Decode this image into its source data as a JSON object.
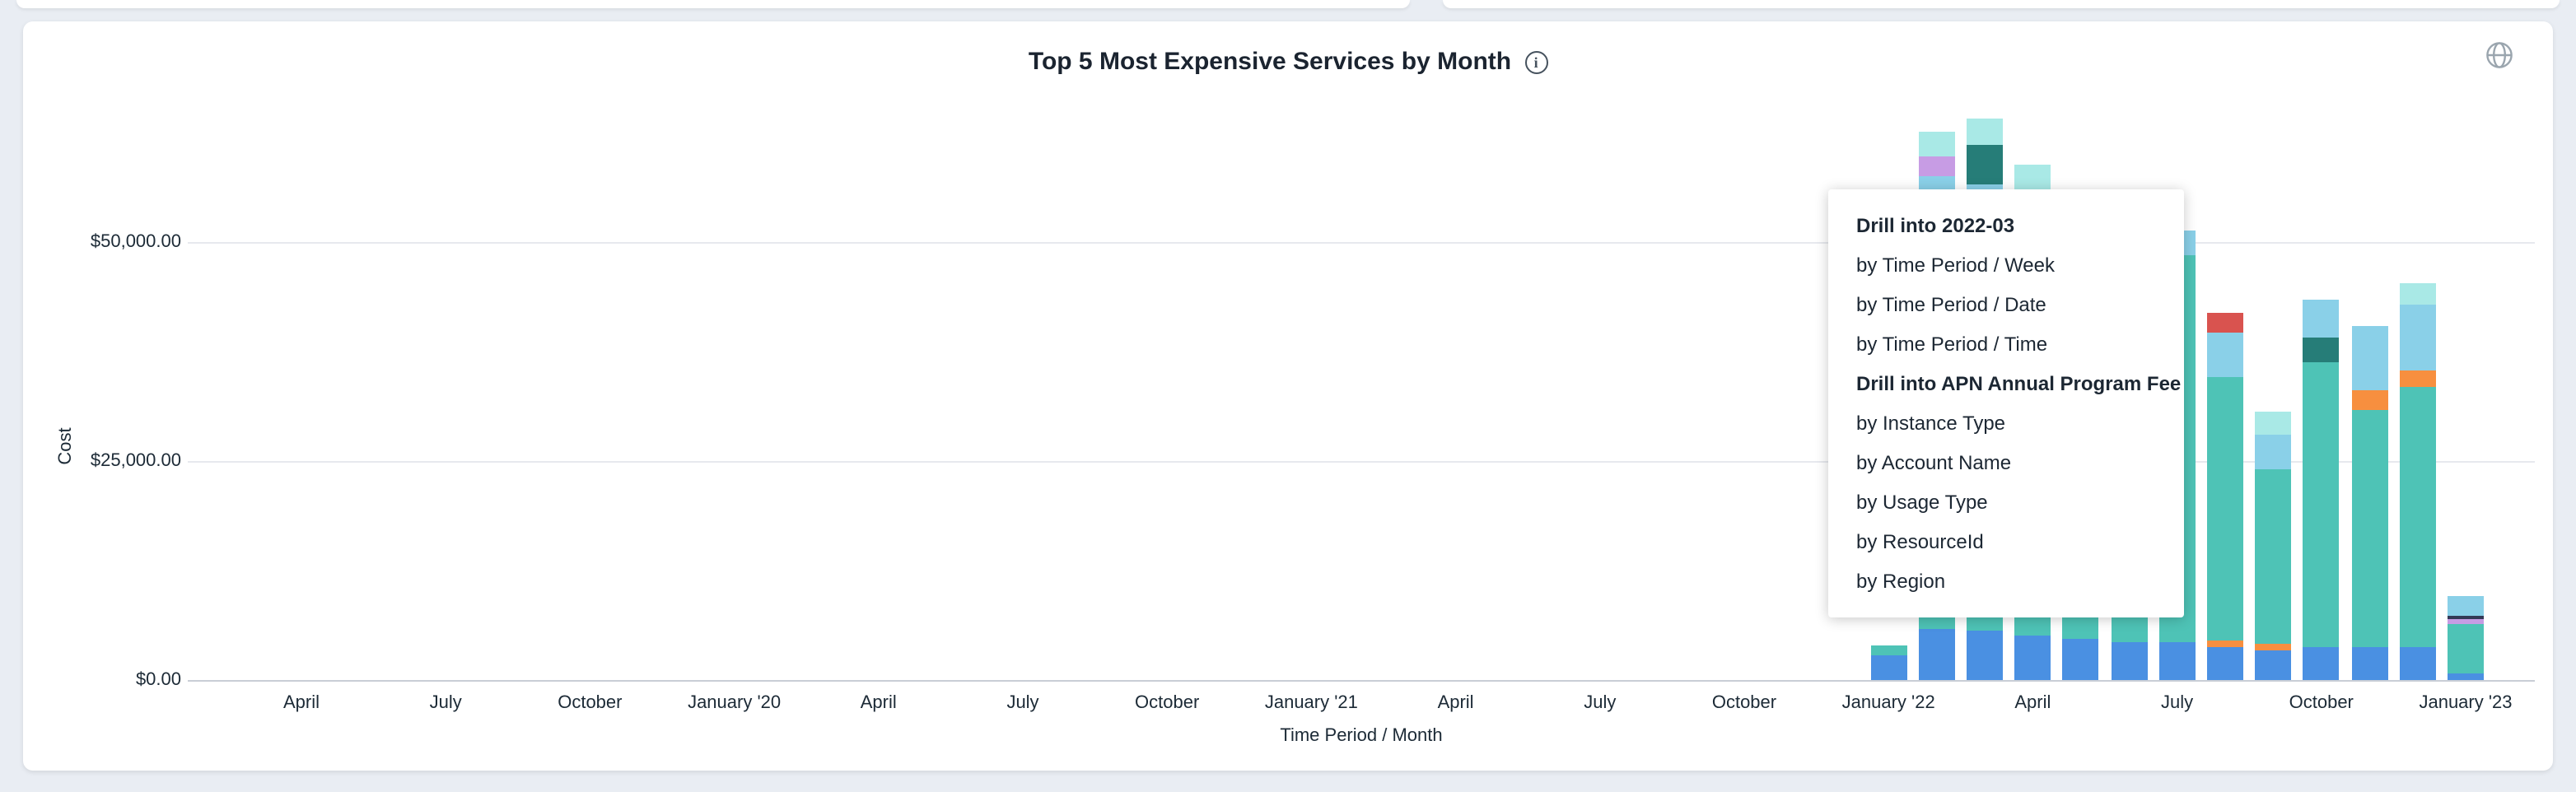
{
  "card": {
    "title": "Top 5 Most Expensive Services by Month",
    "info_icon_glyph": "i"
  },
  "menu": {
    "sections": [
      {
        "header": "Drill into 2022-03",
        "items": [
          "by Time Period / Week",
          "by Time Period / Date",
          "by Time Period / Time"
        ]
      },
      {
        "header": "Drill into APN Annual Program Fee",
        "items": [
          "by Instance Type",
          "by Account Name",
          "by Usage Type",
          "by ResourceId",
          "by Region"
        ]
      }
    ]
  },
  "chart_data": {
    "type": "bar",
    "subtype": "stacked-bar",
    "title": "Top 5 Most Expensive Services by Month",
    "xlabel": "Time Period / Month",
    "ylabel": "Cost",
    "ylim": [
      0,
      66500
    ],
    "grid": "horizontal",
    "legend": "none",
    "y_ticks": [
      {
        "value": 0,
        "label": "$0.00"
      },
      {
        "value": 25000,
        "label": "$25,000.00"
      },
      {
        "value": 50000,
        "label": "$50,000.00"
      }
    ],
    "x_ticks": [
      {
        "month_index": 0,
        "label": "April"
      },
      {
        "month_index": 3,
        "label": "July"
      },
      {
        "month_index": 6,
        "label": "October"
      },
      {
        "month_index": 9,
        "label": "January '20"
      },
      {
        "month_index": 12,
        "label": "April"
      },
      {
        "month_index": 15,
        "label": "July"
      },
      {
        "month_index": 18,
        "label": "October"
      },
      {
        "month_index": 21,
        "label": "January '21"
      },
      {
        "month_index": 24,
        "label": "April"
      },
      {
        "month_index": 27,
        "label": "July"
      },
      {
        "month_index": 30,
        "label": "October"
      },
      {
        "month_index": 33,
        "label": "January '22"
      },
      {
        "month_index": 36,
        "label": "April"
      },
      {
        "month_index": 39,
        "label": "July"
      },
      {
        "month_index": 42,
        "label": "October"
      },
      {
        "month_index": 45,
        "label": "January '23"
      }
    ],
    "series_colors": {
      "blue": "#4a90e2",
      "teal": "#4ec3b6",
      "light-blue": "#8ad0e8",
      "cyan": "#a9e9e6",
      "orange": "#f78f3f",
      "dark-teal": "#267d78",
      "purple": "#c79ce4",
      "red": "#d9534f",
      "navy": "#333a56"
    },
    "bars": [
      {
        "month": "2022-01",
        "month_index": 33,
        "segments": [
          {
            "color": "blue",
            "value": 2800
          },
          {
            "color": "teal",
            "value": 1100
          }
        ]
      },
      {
        "month": "2022-02",
        "month_index": 34,
        "segments": [
          {
            "color": "blue",
            "value": 5800
          },
          {
            "color": "teal",
            "value": 38000
          },
          {
            "color": "light-blue",
            "value": 13700
          },
          {
            "color": "purple",
            "value": 2300
          },
          {
            "color": "cyan",
            "value": 2800
          }
        ]
      },
      {
        "month": "2022-03",
        "month_index": 35,
        "segments": [
          {
            "color": "blue",
            "value": 5600
          },
          {
            "color": "teal",
            "value": 44000
          },
          {
            "color": "light-blue",
            "value": 7000
          },
          {
            "color": "dark-teal",
            "value": 4500
          },
          {
            "color": "cyan",
            "value": 3000
          }
        ]
      },
      {
        "month": "2022-04",
        "month_index": 36,
        "segments": [
          {
            "color": "blue",
            "value": 5000
          },
          {
            "color": "teal",
            "value": 42000
          },
          {
            "color": "light-blue",
            "value": 9000
          },
          {
            "color": "cyan",
            "value": 2800
          }
        ]
      },
      {
        "month": "2022-05",
        "month_index": 37,
        "segments": [
          {
            "color": "blue",
            "value": 4700
          },
          {
            "color": "teal",
            "value": 26000
          },
          {
            "color": "light-blue",
            "value": 4300
          }
        ]
      },
      {
        "month": "2022-06",
        "month_index": 38,
        "segments": [
          {
            "color": "blue",
            "value": 4300
          },
          {
            "color": "teal",
            "value": 29000
          },
          {
            "color": "light-blue",
            "value": 4700
          }
        ]
      },
      {
        "month": "2022-07",
        "month_index": 39,
        "segments": [
          {
            "color": "blue",
            "value": 4300
          },
          {
            "color": "teal",
            "value": 44200
          },
          {
            "color": "light-blue",
            "value": 2800
          }
        ]
      },
      {
        "month": "2022-08",
        "month_index": 40,
        "segments": [
          {
            "color": "blue",
            "value": 3800
          },
          {
            "color": "orange",
            "value": 800
          },
          {
            "color": "teal",
            "value": 30000
          },
          {
            "color": "light-blue",
            "value": 5000
          },
          {
            "color": "red",
            "value": 2300
          }
        ]
      },
      {
        "month": "2022-09",
        "month_index": 41,
        "segments": [
          {
            "color": "blue",
            "value": 3400
          },
          {
            "color": "orange",
            "value": 700
          },
          {
            "color": "teal",
            "value": 20000
          },
          {
            "color": "light-blue",
            "value": 4000
          },
          {
            "color": "cyan",
            "value": 2500
          }
        ]
      },
      {
        "month": "2022-10",
        "month_index": 42,
        "segments": [
          {
            "color": "blue",
            "value": 3800
          },
          {
            "color": "teal",
            "value": 32500
          },
          {
            "color": "dark-teal",
            "value": 2800
          },
          {
            "color": "light-blue",
            "value": 4300
          }
        ]
      },
      {
        "month": "2022-11",
        "month_index": 43,
        "segments": [
          {
            "color": "blue",
            "value": 3800
          },
          {
            "color": "teal",
            "value": 27000
          },
          {
            "color": "orange",
            "value": 2300
          },
          {
            "color": "light-blue",
            "value": 7300
          }
        ]
      },
      {
        "month": "2022-12",
        "month_index": 44,
        "segments": [
          {
            "color": "blue",
            "value": 3800
          },
          {
            "color": "teal",
            "value": 29700
          },
          {
            "color": "orange",
            "value": 1900
          },
          {
            "color": "light-blue",
            "value": 7500
          },
          {
            "color": "cyan",
            "value": 2400
          }
        ]
      },
      {
        "month": "2023-01",
        "month_index": 45,
        "segments": [
          {
            "color": "blue",
            "value": 750
          },
          {
            "color": "teal",
            "value": 5600
          },
          {
            "color": "purple",
            "value": 560
          },
          {
            "color": "navy",
            "value": 380
          },
          {
            "color": "light-blue",
            "value": 2300
          }
        ]
      }
    ]
  }
}
